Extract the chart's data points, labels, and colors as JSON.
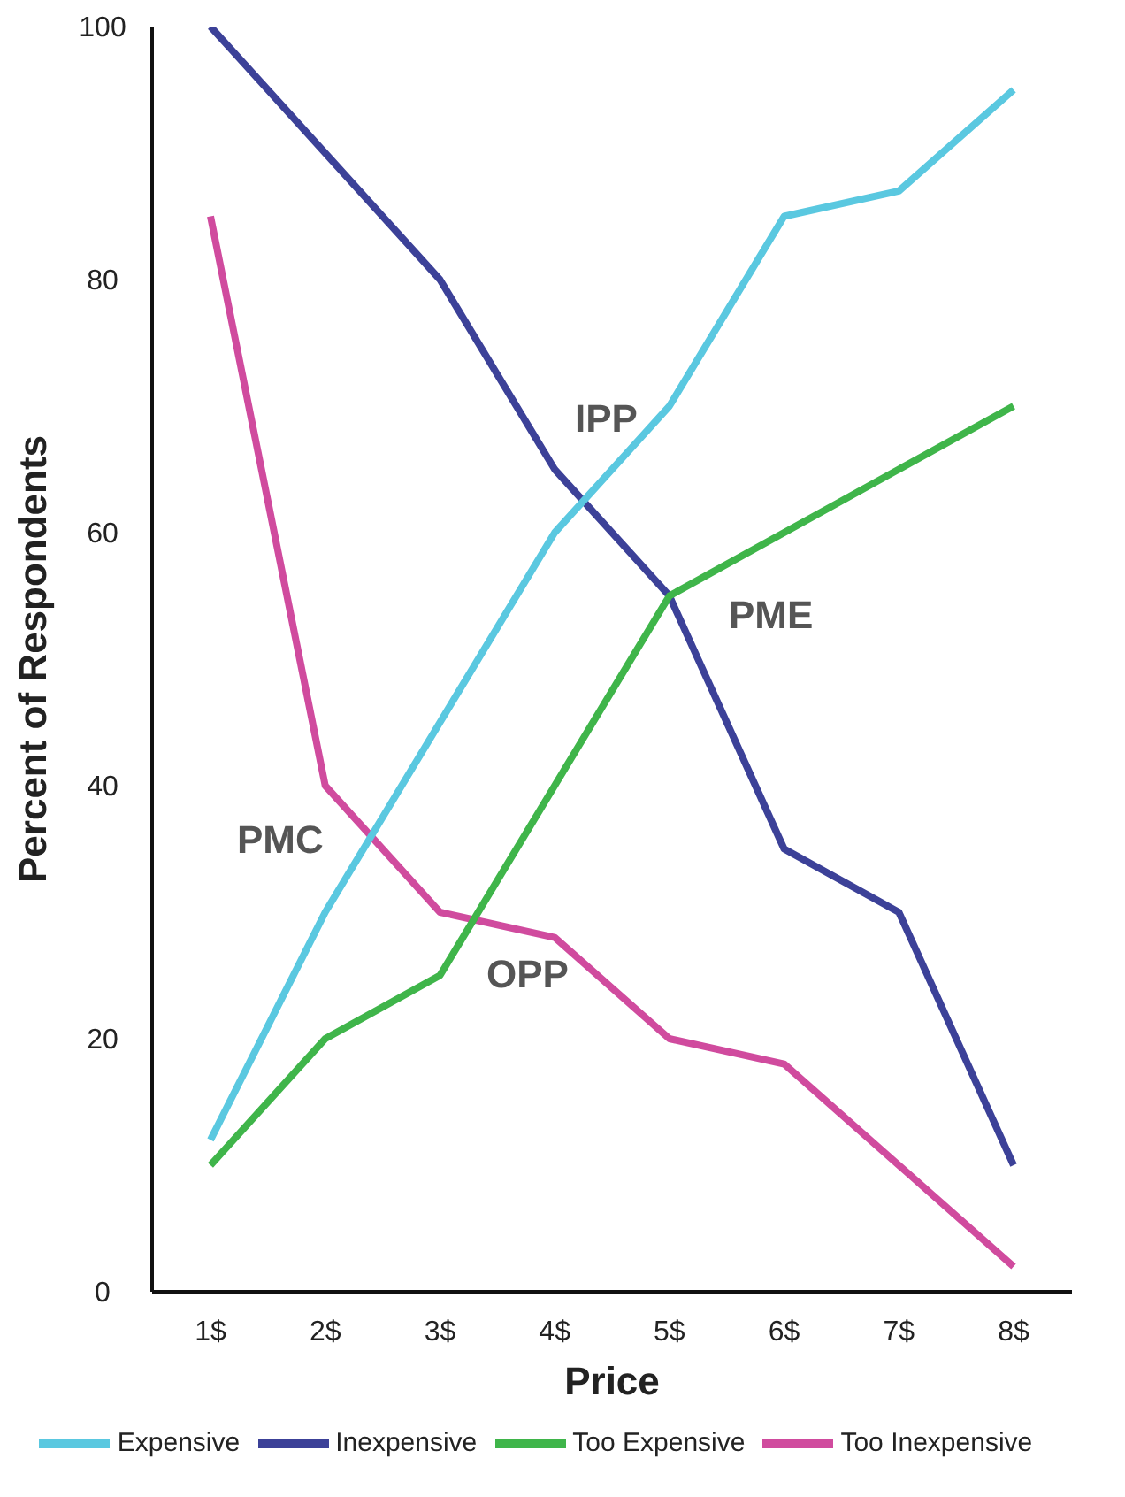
{
  "chart_data": {
    "type": "line",
    "xlabel": "Price",
    "ylabel": "Percent of Respondents",
    "categories": [
      "1$",
      "2$",
      "3$",
      "4$",
      "5$",
      "6$",
      "7$",
      "8$"
    ],
    "series": [
      {
        "name": "Too Inexpensive",
        "color": "#d04b9e",
        "values": [
          85,
          40,
          30,
          28,
          20,
          18,
          10,
          2
        ]
      },
      {
        "name": "Inexpensive",
        "color": "#3c4198",
        "values": [
          100,
          90,
          80,
          65,
          55,
          35,
          30,
          10
        ]
      },
      {
        "name": "Too Expensive",
        "color": "#3fb54a",
        "values": [
          10,
          20,
          25,
          40,
          55,
          60,
          65,
          70
        ]
      },
      {
        "name": "Expensive",
        "color": "#5ac8e0",
        "values": [
          12,
          30,
          45,
          60,
          70,
          85,
          87,
          95
        ]
      }
    ],
    "ylim": [
      0,
      100
    ],
    "yticks": [
      0,
      20,
      40,
      60,
      80,
      100
    ],
    "grid": false,
    "legend": "bottom",
    "marker": "none",
    "line_style": "solid",
    "annotations": [
      "PMC",
      "OPP",
      "IPP",
      "PME"
    ]
  }
}
